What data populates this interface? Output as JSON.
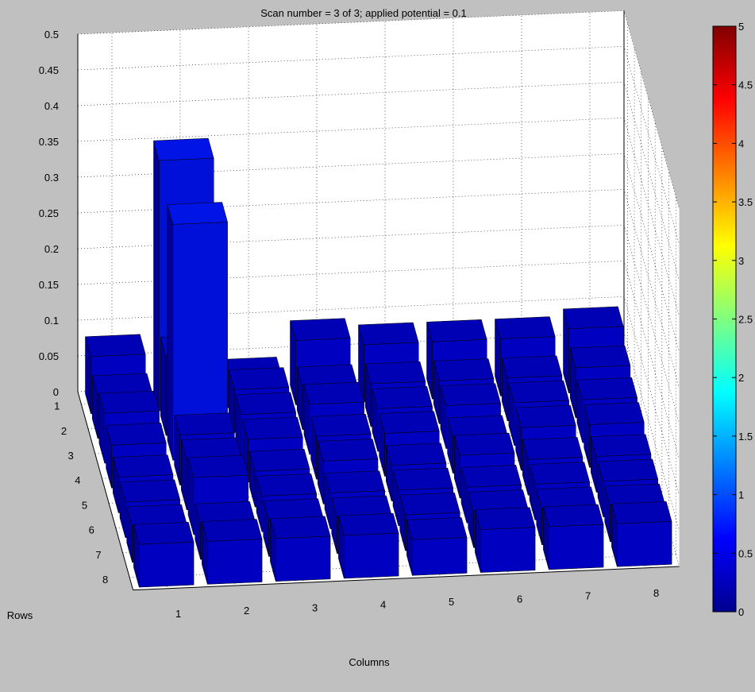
{
  "figure": {
    "title": "Scan number = 3 of 3; applied potential = 0.1",
    "background": "#c0c0c0",
    "axes_background": "#ffffff",
    "bar_color": "#00008f",
    "grid": "dotted"
  },
  "chart_data": {
    "type": "bar3",
    "title": "Scan number = 3 of 3; applied potential = 0.1",
    "xlabel": "Columns",
    "ylabel": "Rows",
    "zlabel": "",
    "x": [
      "1",
      "2",
      "3",
      "4",
      "5",
      "6",
      "7",
      "8"
    ],
    "y": [
      "1",
      "2",
      "3",
      "4",
      "5",
      "6",
      "7",
      "8"
    ],
    "zlim": [
      0,
      0.5
    ],
    "zticks": [
      "0",
      "0.05",
      "0.1",
      "0.15",
      "0.2",
      "0.25",
      "0.3",
      "0.35",
      "0.4",
      "0.45",
      "0.5"
    ],
    "colormap": "jet",
    "clim": [
      0,
      5
    ],
    "colorbar_ticks": [
      "0",
      "0.5",
      "1",
      "1.5",
      "2",
      "2.5",
      "3",
      "3.5",
      "4",
      "4.5",
      "5"
    ],
    "values": [
      [
        0.08,
        0.35,
        0.04,
        0.09,
        0.08,
        0.08,
        0.08,
        0.09
      ],
      [
        0.06,
        0.11,
        0.06,
        0.06,
        0.06,
        0.06,
        0.06,
        0.07
      ],
      [
        0.07,
        0.33,
        0.06,
        0.07,
        0.06,
        0.06,
        0.06,
        0.06
      ],
      [
        0.06,
        0.07,
        0.06,
        0.06,
        0.06,
        0.05,
        0.06,
        0.06
      ],
      [
        0.05,
        0.07,
        0.05,
        0.06,
        0.05,
        0.06,
        0.05,
        0.05
      ],
      [
        0.05,
        0.08,
        0.05,
        0.05,
        0.05,
        0.05,
        0.05,
        0.05
      ],
      [
        0.05,
        0.05,
        0.05,
        0.05,
        0.05,
        0.05,
        0.05,
        0.05
      ],
      [
        0.06,
        0.06,
        0.06,
        0.06,
        0.05,
        0.06,
        0.06,
        0.06
      ]
    ]
  }
}
